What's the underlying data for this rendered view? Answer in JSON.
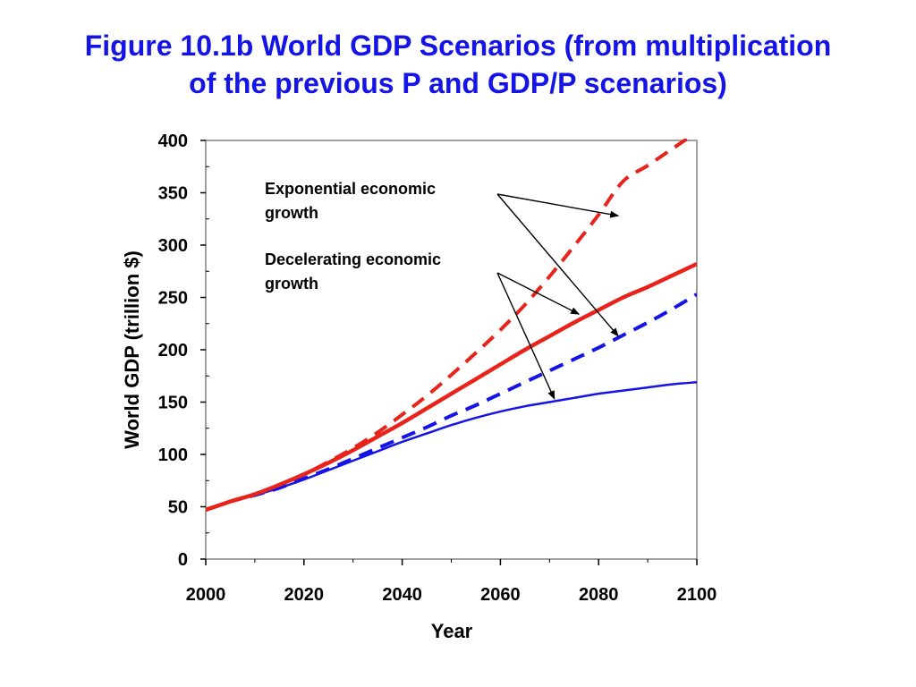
{
  "chart_data": {
    "type": "line",
    "title_line1": "Figure 10.1b World GDP Scenarios (from multiplication",
    "title_line2": "of the previous P and GDP/P scenarios)",
    "xlabel": "Year",
    "ylabel": "World GDP (trillion $)",
    "xlim": [
      2000,
      2100
    ],
    "ylim": [
      0,
      400
    ],
    "xticks": [
      "2000",
      "2020",
      "2040",
      "2060",
      "2080",
      "2100"
    ],
    "yticks": [
      "0",
      "50",
      "100",
      "150",
      "200",
      "250",
      "300",
      "350",
      "400"
    ],
    "grid": false,
    "legend": "none",
    "series": [
      {
        "color": "#e8231b",
        "style": "dashed",
        "x": [
          2000,
          2005,
          2010,
          2015,
          2020,
          2025,
          2030,
          2035,
          2040,
          2045,
          2050,
          2055,
          2060,
          2065,
          2070,
          2075,
          2080,
          2085,
          2090,
          2095,
          2100
        ],
        "y": [
          47,
          55,
          62,
          71,
          81,
          93,
          106,
          121,
          138,
          156,
          176,
          197,
          219,
          243,
          270,
          299,
          329,
          361,
          376,
          392,
          408
        ]
      },
      {
        "color": "#e8231b",
        "style": "solid",
        "x": [
          2000,
          2005,
          2010,
          2015,
          2020,
          2025,
          2030,
          2035,
          2040,
          2045,
          2050,
          2055,
          2060,
          2065,
          2070,
          2075,
          2080,
          2085,
          2090,
          2095,
          2100
        ],
        "y": [
          47,
          55,
          62,
          71,
          81,
          92,
          104,
          117,
          130,
          144,
          158,
          172,
          186,
          200,
          213,
          226,
          238,
          250,
          260,
          271,
          282
        ]
      },
      {
        "color": "#1414e6",
        "style": "dashed",
        "x": [
          2000,
          2005,
          2010,
          2015,
          2020,
          2025,
          2030,
          2035,
          2040,
          2045,
          2050,
          2055,
          2060,
          2065,
          2070,
          2075,
          2080,
          2085,
          2090,
          2095,
          2100
        ],
        "y": [
          47,
          55,
          61,
          68,
          77,
          86,
          96,
          106,
          116,
          126,
          137,
          147,
          158,
          169,
          180,
          191,
          202,
          214,
          226,
          239,
          253
        ]
      },
      {
        "color": "#1414e6",
        "style": "solid",
        "x": [
          2000,
          2005,
          2010,
          2015,
          2020,
          2025,
          2030,
          2035,
          2040,
          2045,
          2050,
          2055,
          2060,
          2065,
          2070,
          2075,
          2080,
          2085,
          2090,
          2095,
          2100
        ],
        "y": [
          47,
          55,
          61,
          68,
          76,
          85,
          94,
          103,
          112,
          120,
          128,
          135,
          141,
          146,
          150,
          154,
          158,
          161,
          164,
          167,
          169
        ]
      }
    ],
    "annotations": [
      {
        "line1": "Exponential economic",
        "line2": "growth",
        "arrow_targets": [
          {
            "x": 2084,
            "y": 328
          },
          {
            "x": 2084,
            "y": 213
          }
        ]
      },
      {
        "line1": "Decelerating economic",
        "line2": "growth",
        "arrow_targets": [
          {
            "x": 2076,
            "y": 234
          },
          {
            "x": 2071,
            "y": 153
          }
        ]
      }
    ]
  }
}
